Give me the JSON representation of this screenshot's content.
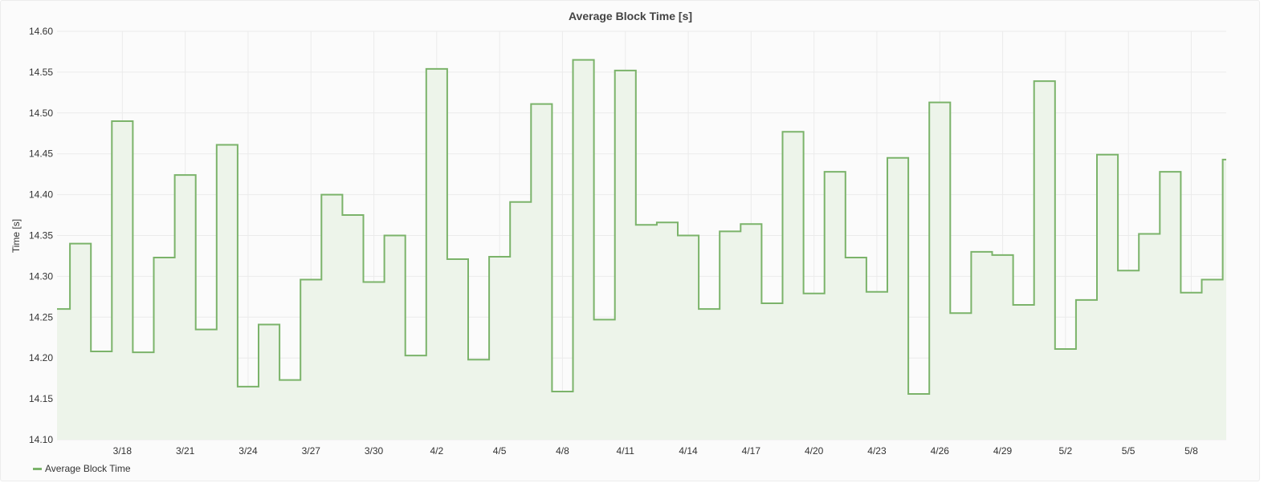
{
  "colors": {
    "line": "#7bb36a",
    "fill": "#edf4ea",
    "grid": "#ebebeb"
  },
  "chart_data": {
    "type": "area",
    "step": true,
    "title": "Average Block Time [s]",
    "xlabel": "",
    "ylabel": "Time [s]",
    "ylim": [
      14.1,
      14.6
    ],
    "yticks": [
      "14.10",
      "14.15",
      "14.20",
      "14.25",
      "14.30",
      "14.35",
      "14.40",
      "14.45",
      "14.50",
      "14.55",
      "14.60"
    ],
    "xticks": [
      "3/18",
      "3/21",
      "3/24",
      "3/27",
      "3/30",
      "4/2",
      "4/5",
      "4/8",
      "4/11",
      "4/14",
      "4/17",
      "4/20",
      "4/23",
      "4/26",
      "4/29",
      "5/2",
      "5/5",
      "5/8"
    ],
    "grid": true,
    "legend_position": "bottom-left",
    "series": [
      {
        "name": "Average Block Time",
        "x": [
          "3/15",
          "3/16",
          "3/17",
          "3/18",
          "3/19",
          "3/20",
          "3/21",
          "3/22",
          "3/23",
          "3/24",
          "3/25",
          "3/26",
          "3/27",
          "3/28",
          "3/29",
          "3/30",
          "3/31",
          "4/1",
          "4/2",
          "4/3",
          "4/4",
          "4/5",
          "4/6",
          "4/7",
          "4/8",
          "4/9",
          "4/10",
          "4/11",
          "4/12",
          "4/13",
          "4/14",
          "4/15",
          "4/16",
          "4/17",
          "4/18",
          "4/19",
          "4/20",
          "4/21",
          "4/22",
          "4/23",
          "4/24",
          "4/25",
          "4/26",
          "4/27",
          "4/28",
          "4/29",
          "4/30",
          "5/1",
          "5/2",
          "5/3",
          "5/4",
          "5/5",
          "5/6",
          "5/7",
          "5/8",
          "5/9",
          "5/10"
        ],
        "values": [
          14.26,
          14.34,
          14.208,
          14.49,
          14.207,
          14.323,
          14.424,
          14.235,
          14.461,
          14.165,
          14.241,
          14.173,
          14.296,
          14.4,
          14.375,
          14.293,
          14.35,
          14.203,
          14.554,
          14.321,
          14.198,
          14.324,
          14.391,
          14.511,
          14.159,
          14.565,
          14.247,
          14.552,
          14.363,
          14.366,
          14.35,
          14.26,
          14.355,
          14.364,
          14.267,
          14.477,
          14.279,
          14.428,
          14.323,
          14.281,
          14.445,
          14.156,
          14.513,
          14.255,
          14.33,
          14.326,
          14.265,
          14.539,
          14.211,
          14.271,
          14.449,
          14.307,
          14.352,
          14.428,
          14.28,
          14.296,
          14.443
        ]
      }
    ]
  }
}
